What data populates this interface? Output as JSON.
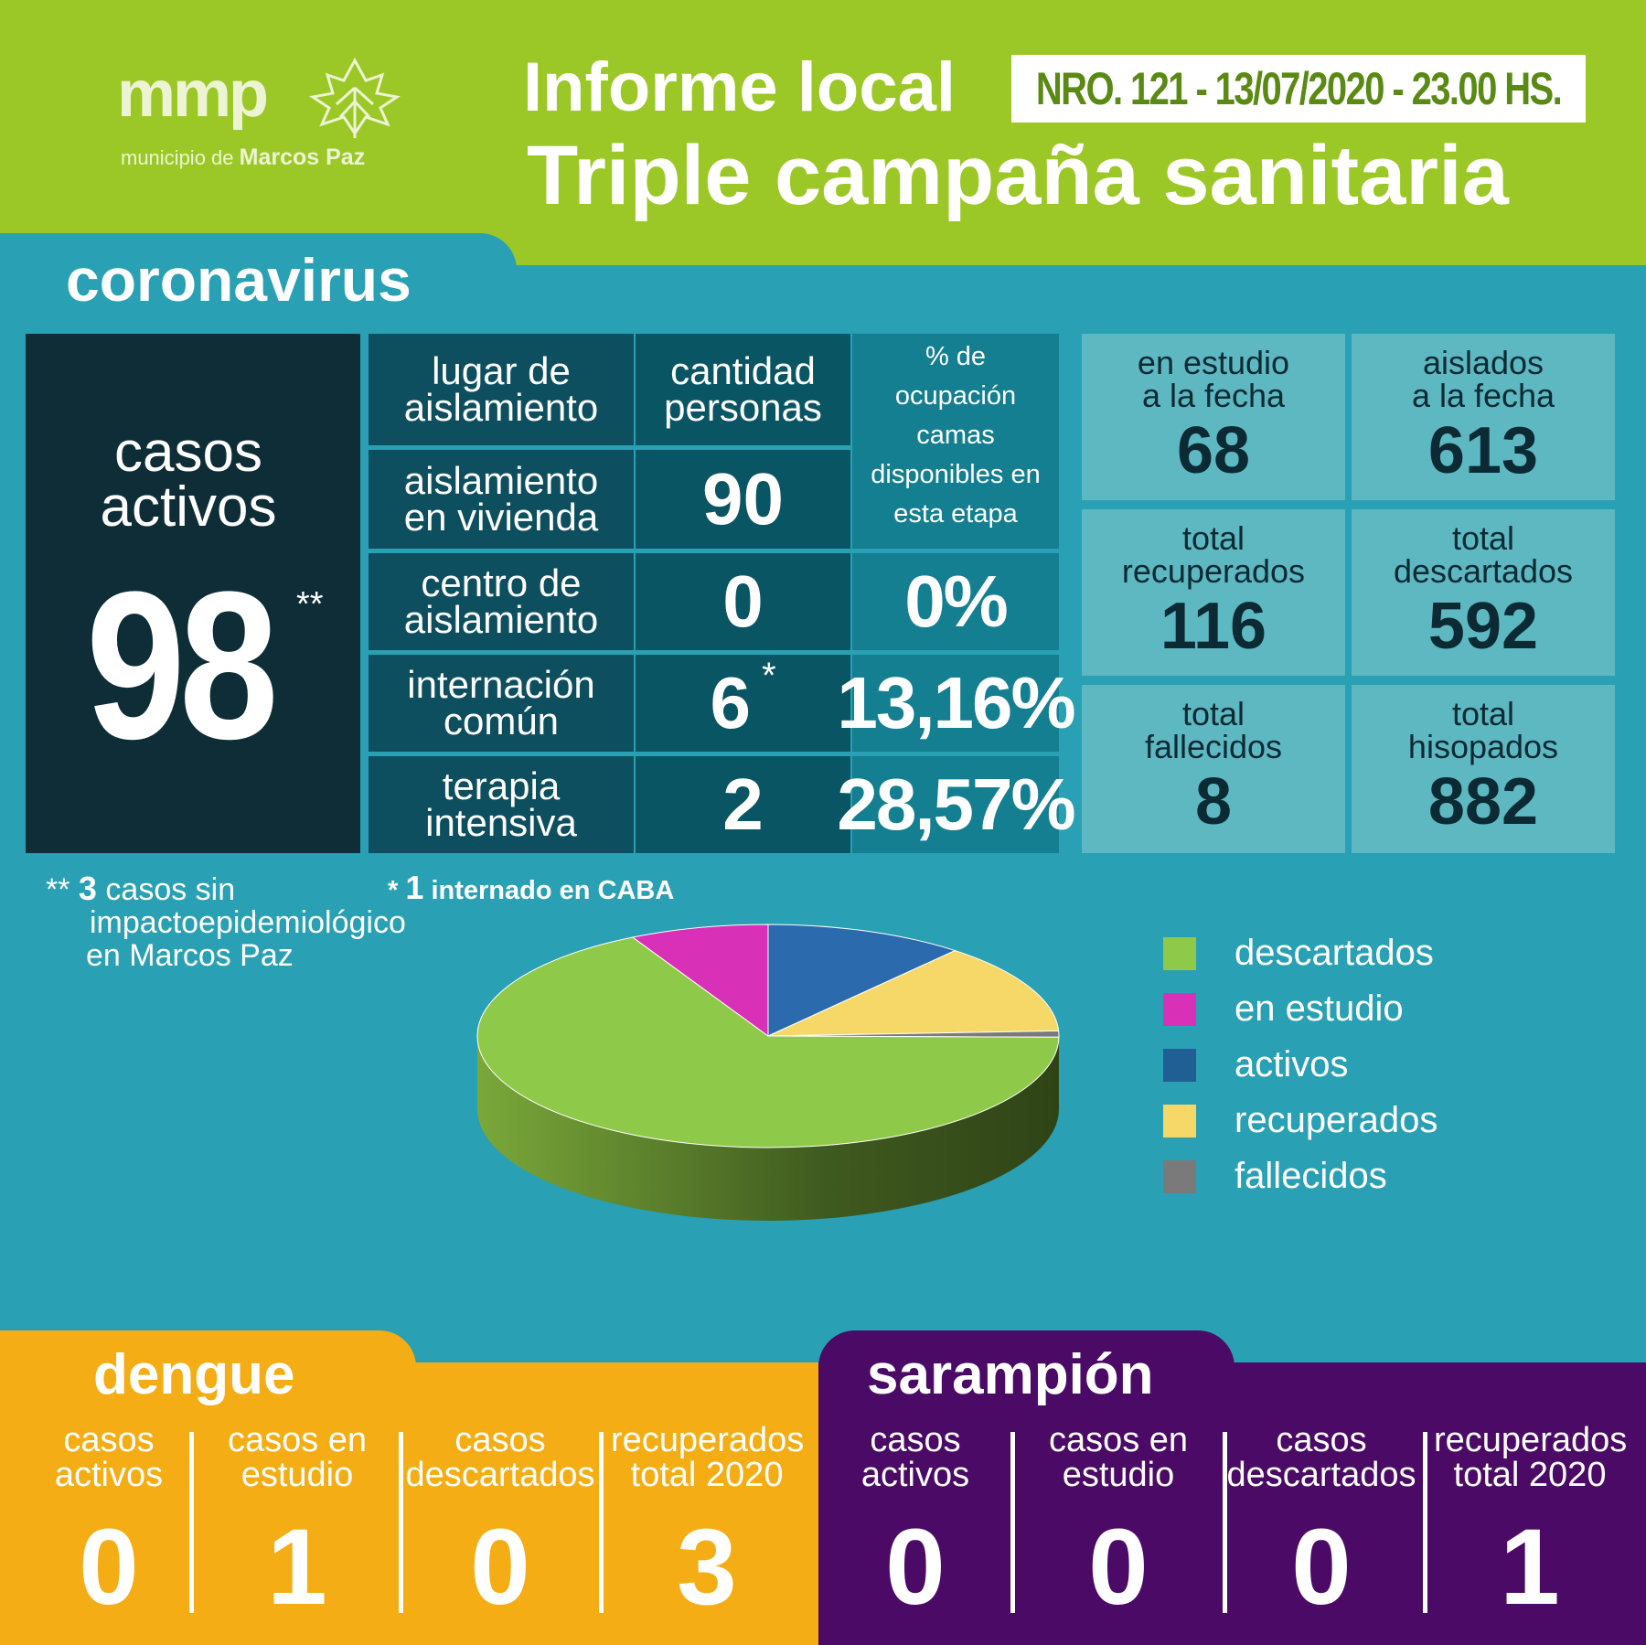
{
  "header": {
    "logo_mark": "mmp",
    "logo_sub_prefix": "municipio de",
    "logo_sub_name": "Marcos Paz",
    "title_line1": "Informe local",
    "report_badge": "NRO. 121 - 13/07/2020 - 23.00 HS.",
    "title_line2": "Triple campaña sanitaria"
  },
  "coronavirus": {
    "title": "coronavirus",
    "active": {
      "label_1": "casos",
      "label_2": "activos",
      "value": "98",
      "mark": "**"
    },
    "table": {
      "headers": {
        "place": [
          "lugar de",
          "aislamiento"
        ],
        "qty": [
          "cantidad",
          "personas"
        ],
        "pct": [
          "% de",
          "ocupación",
          "camas",
          "disponibles en",
          "esta etapa"
        ]
      },
      "rows": [
        {
          "place": [
            "aislamiento",
            "en vivienda"
          ],
          "qty": "90",
          "pct": ""
        },
        {
          "place": [
            "centro de",
            "aislamiento"
          ],
          "qty": "0",
          "pct": "0%"
        },
        {
          "place": [
            "internación",
            "común"
          ],
          "qty": "6",
          "mark": "*",
          "pct": "13,16%"
        },
        {
          "place": [
            "terapia",
            "intensiva"
          ],
          "qty": "2",
          "pct": "28,57%"
        }
      ]
    },
    "stats": [
      {
        "label": [
          "en estudio",
          "a la fecha"
        ],
        "value": "68"
      },
      {
        "label": [
          "aislados",
          "a la fecha"
        ],
        "value": "613"
      },
      {
        "label": [
          "total",
          "recuperados"
        ],
        "value": "116"
      },
      {
        "label": [
          "total",
          "descartados"
        ],
        "value": "592"
      },
      {
        "label": [
          "total",
          "fallecidos"
        ],
        "value": "8"
      },
      {
        "label": [
          "total",
          "hisopados"
        ],
        "value": "882"
      }
    ],
    "note_active": {
      "prefix": "**",
      "number": "3",
      "text_1": "casos sin",
      "text_2": "impactoepidemiológico",
      "text_3": "en Marcos Paz"
    },
    "note_intern": {
      "prefix": "*",
      "number": "1",
      "text": "internado en CABA"
    }
  },
  "chart_data": {
    "type": "pie",
    "title": "",
    "series": [
      {
        "name": "descartados",
        "value": 592,
        "color": "#8fc94a"
      },
      {
        "name": "en estudio",
        "value": 68,
        "color": "#d930b8"
      },
      {
        "name": "activos",
        "value": 98,
        "color": "#2b6aad"
      },
      {
        "name": "recuperados",
        "value": 116,
        "color": "#f6d868"
      },
      {
        "name": "fallecidos",
        "value": 8,
        "color": "#7a7a7a"
      }
    ],
    "legend_position": "right",
    "style": "3d"
  },
  "legend": [
    {
      "label": "descartados",
      "color": "#8fc94a"
    },
    {
      "label": "en estudio",
      "color": "#d930b8"
    },
    {
      "label": "activos",
      "color": "#205f94"
    },
    {
      "label": "recuperados",
      "color": "#f6d868"
    },
    {
      "label": "fallecidos",
      "color": "#7a7a7a"
    }
  ],
  "dengue": {
    "title": "dengue",
    "cols": [
      {
        "label": [
          "casos",
          "activos"
        ],
        "value": "0"
      },
      {
        "label": [
          "casos en",
          "estudio"
        ],
        "value": "1"
      },
      {
        "label": [
          "casos",
          "descartados"
        ],
        "value": "0"
      },
      {
        "label": [
          "recuperados",
          "total 2020"
        ],
        "value": "3"
      }
    ]
  },
  "sarampion": {
    "title": "sarampión",
    "cols": [
      {
        "label": [
          "casos",
          "activos"
        ],
        "value": "0"
      },
      {
        "label": [
          "casos en",
          "estudio"
        ],
        "value": "0"
      },
      {
        "label": [
          "casos",
          "descartados"
        ],
        "value": "0"
      },
      {
        "label": [
          "recuperados",
          "total 2020"
        ],
        "value": "1"
      }
    ]
  },
  "colors": {
    "header_green": "#9cc827",
    "teal_bg": "#29a0b3",
    "dengue_orange": "#f4ad14",
    "sarampion_purple": "#4a0a66",
    "dark_navy": "#0e2d37"
  }
}
